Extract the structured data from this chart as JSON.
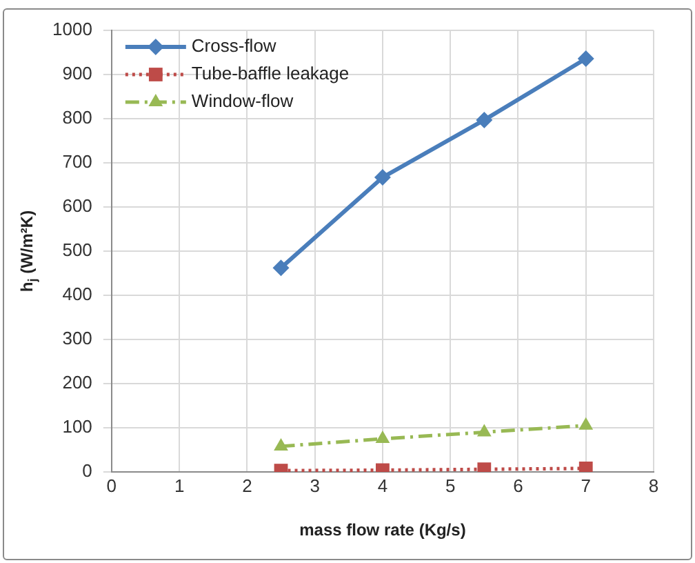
{
  "chart_data": {
    "type": "line",
    "xlabel": "mass flow rate (Kg/s)",
    "ylabel": "h$_{j}$ (W/m²K)",
    "x": [
      2.5,
      4,
      5.5,
      7
    ],
    "series": [
      {
        "name": "Cross-flow",
        "color": "#4a7ebb",
        "values": [
          462,
          667,
          797,
          936
        ],
        "marker": "diamond",
        "line_style": "solid"
      },
      {
        "name": "Tube-baffle leakage",
        "color": "#be4b48",
        "values": [
          3,
          4,
          6,
          8
        ],
        "marker": "square",
        "line_style": "dotted"
      },
      {
        "name": "Window-flow",
        "color": "#98b954",
        "values": [
          58,
          75,
          90,
          105
        ],
        "marker": "triangle",
        "line_style": "dashed"
      }
    ],
    "xlim": [
      0,
      8
    ],
    "xticks": [
      0,
      1,
      2,
      3,
      4,
      5,
      6,
      7,
      8
    ],
    "ylim": [
      0,
      1000
    ],
    "yticks": [
      0,
      100,
      200,
      300,
      400,
      500,
      600,
      700,
      800,
      900,
      1000
    ],
    "grid": true,
    "legend": "top left"
  }
}
